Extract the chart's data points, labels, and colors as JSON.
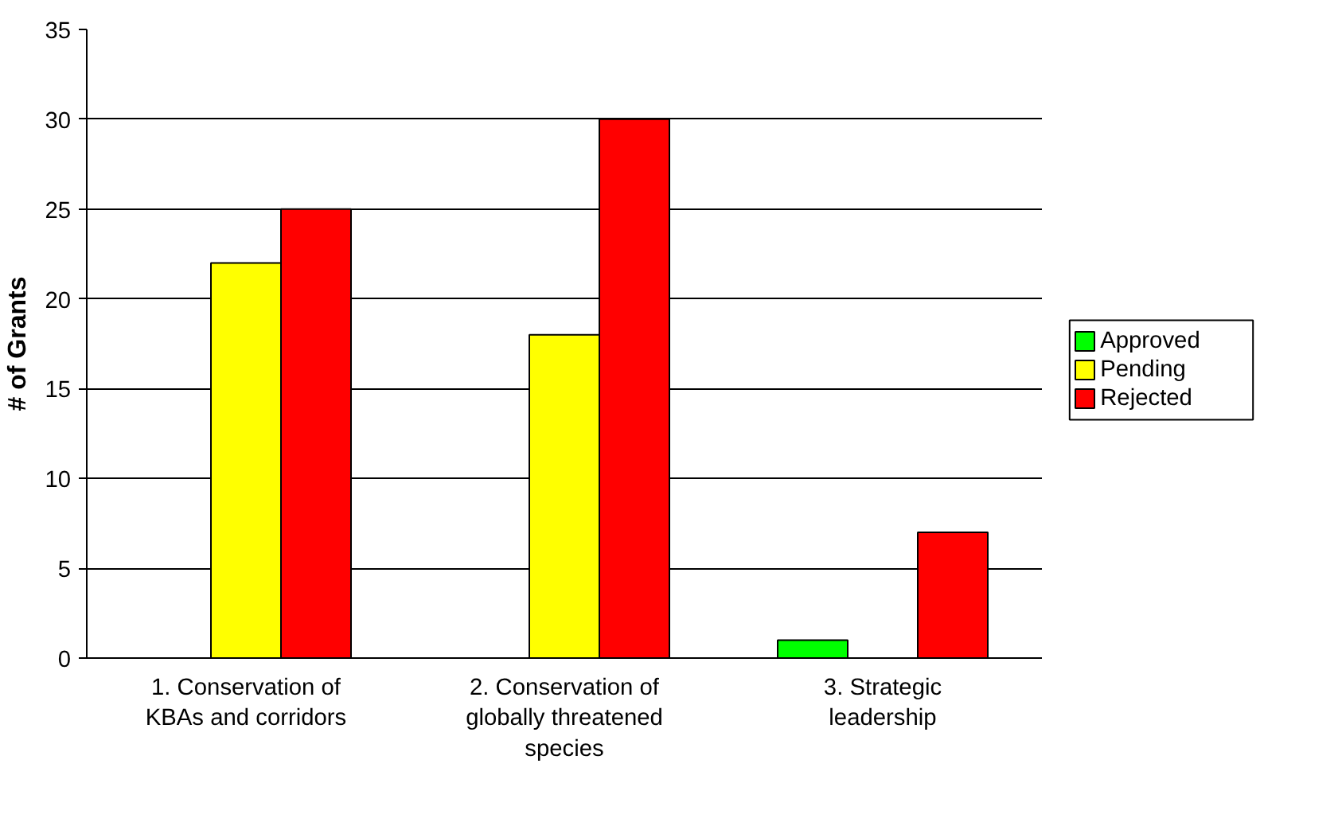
{
  "chart_data": {
    "type": "bar",
    "ylabel": "# of Grants",
    "categories": [
      "1. Conservation of KBAs and corridors",
      "2. Conservation of globally threatened species",
      "3. Strategic leadership"
    ],
    "series": [
      {
        "name": "Approved",
        "color": "#00ff00",
        "values": [
          null,
          null,
          1
        ]
      },
      {
        "name": "Pending",
        "color": "#ffff00",
        "values": [
          22,
          18,
          null
        ]
      },
      {
        "name": "Rejected",
        "color": "#ff0000",
        "values": [
          25,
          30,
          7
        ]
      }
    ],
    "ylim": [
      0,
      35
    ],
    "yticks": [
      0,
      5,
      10,
      15,
      20,
      25,
      30,
      35
    ],
    "grid": "y",
    "legend": "right"
  }
}
